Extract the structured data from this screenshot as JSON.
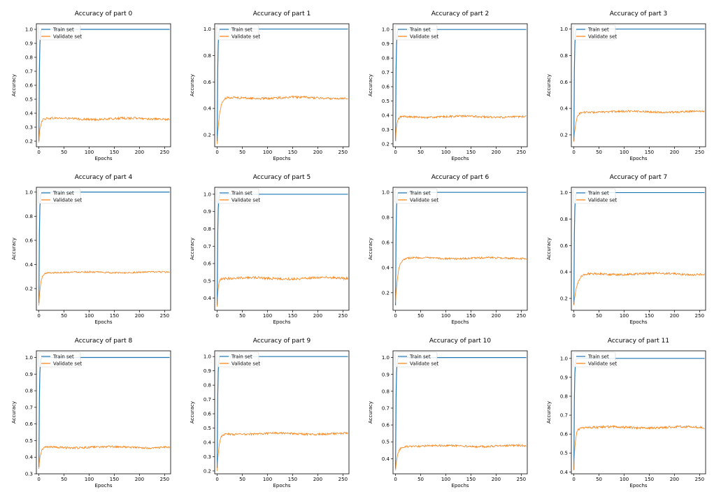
{
  "figure": {
    "description_free": true
  },
  "colors": {
    "train": "#1f77b4",
    "validate": "#ff7f0e",
    "frame": "#000000"
  },
  "chart_data": [
    {
      "type": "line",
      "title": "Accuracy of part 0",
      "xlabel": "Epochs",
      "ylabel": "Accuracy",
      "xlim": [
        -5,
        262
      ],
      "ylim": [
        0.16,
        1.04
      ],
      "xticks": [
        0,
        50,
        100,
        150,
        200,
        250
      ],
      "yticks": [
        0.2,
        0.3,
        0.4,
        0.5,
        0.6,
        0.7,
        0.8,
        0.9,
        1.0
      ],
      "ytick_labels": [
        "0.2",
        "0.3",
        "0.4",
        "0.5",
        "0.6",
        "0.7",
        "0.8",
        "0.9",
        "1.0"
      ],
      "legend": "top-left",
      "series": [
        {
          "name": "Train set",
          "start": 0.2,
          "plateau": 1.0,
          "rise": 3
        },
        {
          "name": "Validate set",
          "start": 0.19,
          "plateau": 0.36,
          "rise": 8,
          "noise": 0.008
        }
      ]
    },
    {
      "type": "line",
      "title": "Accuracy of part 1",
      "xlabel": "Epochs",
      "ylabel": "Accuracy",
      "xlim": [
        -5,
        262
      ],
      "ylim": [
        0.11,
        1.04
      ],
      "xticks": [
        0,
        50,
        100,
        150,
        200,
        250
      ],
      "yticks": [
        0.2,
        0.4,
        0.6,
        0.8,
        1.0
      ],
      "ytick_labels": [
        "0.2",
        "0.4",
        "0.6",
        "0.8",
        "1.0"
      ],
      "legend": "top-left",
      "series": [
        {
          "name": "Train set",
          "start": 0.15,
          "plateau": 1.0,
          "rise": 3
        },
        {
          "name": "Validate set",
          "start": 0.13,
          "plateau": 0.48,
          "rise": 14,
          "noise": 0.008
        }
      ]
    },
    {
      "type": "line",
      "title": "Accuracy of part 2",
      "xlabel": "Epochs",
      "ylabel": "Accuracy",
      "xlim": [
        -5,
        262
      ],
      "ylim": [
        0.18,
        1.04
      ],
      "xticks": [
        0,
        50,
        100,
        150,
        200,
        250
      ],
      "yticks": [
        0.2,
        0.3,
        0.4,
        0.5,
        0.6,
        0.7,
        0.8,
        0.9,
        1.0
      ],
      "ytick_labels": [
        "0.2",
        "0.3",
        "0.4",
        "0.5",
        "0.6",
        "0.7",
        "0.8",
        "0.9",
        "1.0"
      ],
      "legend": "top-left",
      "series": [
        {
          "name": "Train set",
          "start": 0.22,
          "plateau": 1.0,
          "rise": 3
        },
        {
          "name": "Validate set",
          "start": 0.22,
          "plateau": 0.39,
          "rise": 8,
          "noise": 0.007
        }
      ]
    },
    {
      "type": "line",
      "title": "Accuracy of part 3",
      "xlabel": "Epochs",
      "ylabel": "Accuracy",
      "xlim": [
        -5,
        262
      ],
      "ylim": [
        0.11,
        1.04
      ],
      "xticks": [
        0,
        50,
        100,
        150,
        200,
        250
      ],
      "yticks": [
        0.2,
        0.4,
        0.6,
        0.8,
        1.0
      ],
      "ytick_labels": [
        "0.2",
        "0.4",
        "0.6",
        "0.8",
        "1.0"
      ],
      "legend": "top-left",
      "series": [
        {
          "name": "Train set",
          "start": 0.15,
          "plateau": 1.0,
          "rise": 3
        },
        {
          "name": "Validate set",
          "start": 0.15,
          "plateau": 0.375,
          "rise": 12,
          "noise": 0.007
        }
      ]
    },
    {
      "type": "line",
      "title": "Accuracy of part 4",
      "xlabel": "Epochs",
      "ylabel": "Accuracy",
      "xlim": [
        -5,
        262
      ],
      "ylim": [
        0.02,
        1.04
      ],
      "xticks": [
        0,
        50,
        100,
        150,
        200,
        250
      ],
      "yticks": [
        0.2,
        0.4,
        0.6,
        0.8,
        1.0
      ],
      "ytick_labels": [
        "0.2",
        "0.4",
        "0.6",
        "0.8",
        "1.0"
      ],
      "legend": "top-left",
      "series": [
        {
          "name": "Train set",
          "start": 0.08,
          "plateau": 1.0,
          "rise": 3
        },
        {
          "name": "Validate set",
          "start": 0.06,
          "plateau": 0.335,
          "rise": 10,
          "noise": 0.006
        }
      ]
    },
    {
      "type": "line",
      "title": "Accuracy of part 5",
      "xlabel": "Epochs",
      "ylabel": "Accuracy",
      "xlim": [
        -5,
        262
      ],
      "ylim": [
        0.33,
        1.04
      ],
      "xticks": [
        0,
        50,
        100,
        150,
        200,
        250
      ],
      "yticks": [
        0.4,
        0.5,
        0.6,
        0.7,
        0.8,
        0.9,
        1.0
      ],
      "ytick_labels": [
        "0.4",
        "0.5",
        "0.6",
        "0.7",
        "0.8",
        "0.9",
        "1.0"
      ],
      "legend": "top-left",
      "series": [
        {
          "name": "Train set",
          "start": 0.36,
          "plateau": 1.0,
          "rise": 3
        },
        {
          "name": "Validate set",
          "start": 0.35,
          "plateau": 0.515,
          "rise": 6,
          "noise": 0.007
        }
      ]
    },
    {
      "type": "line",
      "title": "Accuracy of part 6",
      "xlabel": "Epochs",
      "ylabel": "Accuracy",
      "xlim": [
        -5,
        262
      ],
      "ylim": [
        0.06,
        1.04
      ],
      "xticks": [
        0,
        50,
        100,
        150,
        200,
        250
      ],
      "yticks": [
        0.2,
        0.4,
        0.6,
        0.8,
        1.0
      ],
      "ytick_labels": [
        "0.2",
        "0.4",
        "0.6",
        "0.8",
        "1.0"
      ],
      "legend": "top-left",
      "series": [
        {
          "name": "Train set",
          "start": 0.1,
          "plateau": 1.0,
          "rise": 3
        },
        {
          "name": "Validate set",
          "start": 0.12,
          "plateau": 0.475,
          "rise": 14,
          "noise": 0.007
        }
      ]
    },
    {
      "type": "line",
      "title": "Accuracy of part 7",
      "xlabel": "Epochs",
      "ylabel": "Accuracy",
      "xlim": [
        -5,
        262
      ],
      "ylim": [
        0.11,
        1.04
      ],
      "xticks": [
        0,
        50,
        100,
        150,
        200,
        250
      ],
      "yticks": [
        0.2,
        0.4,
        0.6,
        0.8,
        1.0
      ],
      "ytick_labels": [
        "0.2",
        "0.4",
        "0.6",
        "0.8",
        "1.0"
      ],
      "legend": "top-left",
      "series": [
        {
          "name": "Train set",
          "start": 0.15,
          "plateau": 1.0,
          "rise": 3
        },
        {
          "name": "Validate set",
          "start": 0.15,
          "plateau": 0.385,
          "rise": 20,
          "noise": 0.008
        }
      ]
    },
    {
      "type": "line",
      "title": "Accuracy of part 8",
      "xlabel": "Epochs",
      "ylabel": "Accuracy",
      "xlim": [
        -5,
        262
      ],
      "ylim": [
        0.3,
        1.04
      ],
      "xticks": [
        0,
        50,
        100,
        150,
        200,
        250
      ],
      "yticks": [
        0.3,
        0.4,
        0.5,
        0.6,
        0.7,
        0.8,
        0.9,
        1.0
      ],
      "ytick_labels": [
        "0.3",
        "0.4",
        "0.5",
        "0.6",
        "0.7",
        "0.8",
        "0.9",
        "1.0"
      ],
      "legend": "top-left",
      "series": [
        {
          "name": "Train set",
          "start": 0.34,
          "plateau": 1.0,
          "rise": 3
        },
        {
          "name": "Validate set",
          "start": 0.33,
          "plateau": 0.46,
          "rise": 10,
          "noise": 0.006
        }
      ]
    },
    {
      "type": "line",
      "title": "Accuracy of part 9",
      "xlabel": "Epochs",
      "ylabel": "Accuracy",
      "xlim": [
        -5,
        262
      ],
      "ylim": [
        0.18,
        1.04
      ],
      "xticks": [
        0,
        50,
        100,
        150,
        200,
        250
      ],
      "yticks": [
        0.2,
        0.3,
        0.4,
        0.5,
        0.6,
        0.7,
        0.8,
        0.9,
        1.0
      ],
      "ytick_labels": [
        "0.2",
        "0.3",
        "0.4",
        "0.5",
        "0.6",
        "0.7",
        "0.8",
        "0.9",
        "1.0"
      ],
      "legend": "top-left",
      "series": [
        {
          "name": "Train set",
          "start": 0.22,
          "plateau": 1.0,
          "rise": 3
        },
        {
          "name": "Validate set",
          "start": 0.2,
          "plateau": 0.46,
          "rise": 10,
          "noise": 0.007
        }
      ]
    },
    {
      "type": "line",
      "title": "Accuracy of part 10",
      "xlabel": "Epochs",
      "ylabel": "Accuracy",
      "xlim": [
        -5,
        262
      ],
      "ylim": [
        0.31,
        1.04
      ],
      "xticks": [
        0,
        50,
        100,
        150,
        200,
        250
      ],
      "yticks": [
        0.4,
        0.5,
        0.6,
        0.7,
        0.8,
        0.9,
        1.0
      ],
      "ytick_labels": [
        "0.4",
        "0.5",
        "0.6",
        "0.7",
        "0.8",
        "0.9",
        "1.0"
      ],
      "legend": "top-left",
      "series": [
        {
          "name": "Train set",
          "start": 0.34,
          "plateau": 1.0,
          "rise": 3
        },
        {
          "name": "Validate set",
          "start": 0.33,
          "plateau": 0.475,
          "rise": 12,
          "noise": 0.006
        }
      ]
    },
    {
      "type": "line",
      "title": "Accuracy of part 11",
      "xlabel": "Epochs",
      "ylabel": "Accuracy",
      "xlim": [
        -5,
        262
      ],
      "ylim": [
        0.39,
        1.04
      ],
      "xticks": [
        0,
        50,
        100,
        150,
        200,
        250
      ],
      "yticks": [
        0.4,
        0.5,
        0.6,
        0.7,
        0.8,
        0.9,
        1.0
      ],
      "ytick_labels": [
        "0.4",
        "0.5",
        "0.6",
        "0.7",
        "0.8",
        "0.9",
        "1.0"
      ],
      "legend": "top-left",
      "series": [
        {
          "name": "Train set",
          "start": 0.41,
          "plateau": 1.0,
          "rise": 3
        },
        {
          "name": "Validate set",
          "start": 0.41,
          "plateau": 0.635,
          "rise": 8,
          "noise": 0.006
        }
      ]
    }
  ]
}
